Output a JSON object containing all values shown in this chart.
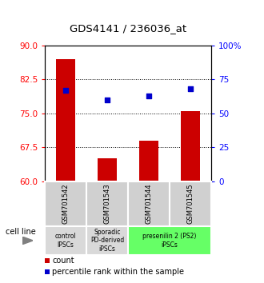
{
  "title": "GDS4141 / 236036_at",
  "samples": [
    "GSM701542",
    "GSM701543",
    "GSM701544",
    "GSM701545"
  ],
  "bar_values": [
    87.0,
    65.0,
    69.0,
    75.5
  ],
  "percentile_values": [
    67.0,
    60.0,
    63.0,
    68.0
  ],
  "y_left_min": 60,
  "y_left_max": 90,
  "y_left_ticks": [
    60,
    67.5,
    75,
    82.5,
    90
  ],
  "y_right_min": 0,
  "y_right_max": 100,
  "y_right_ticks": [
    0,
    25,
    50,
    75,
    100
  ],
  "bar_color": "#cc0000",
  "dot_color": "#0000cc",
  "bar_width": 0.45,
  "groups": [
    {
      "label": "control\nIPSCs",
      "xmin": -0.5,
      "xmax": 0.5,
      "color": "#d9d9d9"
    },
    {
      "label": "Sporadic\nPD-derived\niPSCs",
      "xmin": 0.5,
      "xmax": 1.5,
      "color": "#d9d9d9"
    },
    {
      "label": "presenilin 2 (PS2)\niPSCs",
      "xmin": 1.5,
      "xmax": 3.5,
      "color": "#66ff66"
    }
  ],
  "legend_items": [
    {
      "color": "#cc0000",
      "label": "count"
    },
    {
      "color": "#0000cc",
      "label": "percentile rank within the sample"
    }
  ],
  "sample_box_color": "#d0d0d0",
  "cell_line_label": "cell line"
}
